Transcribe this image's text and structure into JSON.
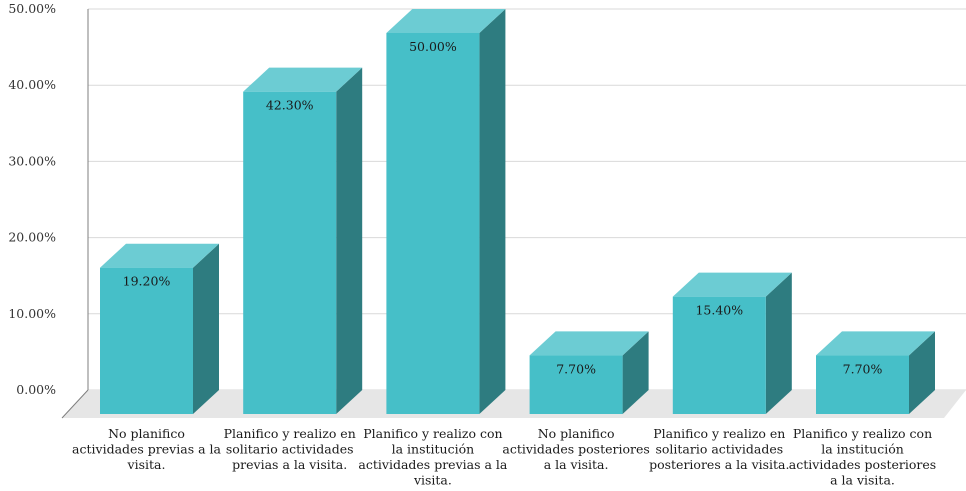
{
  "chart_data": {
    "type": "bar",
    "style": "3d-column",
    "categories": [
      [
        "No planifico",
        "actividades previas a la",
        "visita."
      ],
      [
        "Planifico y realizo en",
        "solitario actividades",
        "previas a la visita."
      ],
      [
        "Planifico y realizo con",
        "la institución",
        "actividades previas a la",
        "visita."
      ],
      [
        "No planifico",
        "actividades posteriores",
        "a la visita."
      ],
      [
        "Planifico y realizo en",
        "solitario actividades",
        "posteriores a la visita."
      ],
      [
        "Planifico y realizo con",
        "la institución",
        "actividades posteriores",
        "a la visita."
      ]
    ],
    "values": [
      19.2,
      42.3,
      50.0,
      7.7,
      15.4,
      7.7
    ],
    "data_labels": [
      "19.20%",
      "42.30%",
      "50.00%",
      "7.70%",
      "15.40%",
      "7.70%"
    ],
    "yticks": [
      "0.00%",
      "10.00%",
      "20.00%",
      "30.00%",
      "40.00%",
      "50.00%"
    ],
    "ylim": [
      0,
      50
    ],
    "grid": true,
    "colors": {
      "front": "#46BFC8",
      "top": "#6CCCD3",
      "side": "#2E7C80",
      "floor": "#E6E6E6",
      "grid": "#D9D9D9",
      "axis": "#7F7F7F"
    }
  }
}
